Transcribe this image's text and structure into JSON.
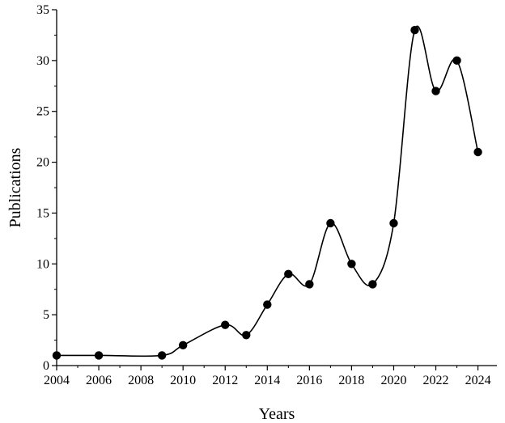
{
  "chart_data": {
    "type": "line",
    "xlabel": "Years",
    "ylabel": "Publications",
    "xlim": [
      2004,
      2024.9
    ],
    "ylim": [
      0,
      35
    ],
    "x_ticks": [
      2004,
      2006,
      2008,
      2010,
      2012,
      2014,
      2016,
      2018,
      2020,
      2022,
      2024
    ],
    "y_ticks": [
      0,
      5,
      10,
      15,
      20,
      25,
      30,
      35
    ],
    "grid": false,
    "smooth": true,
    "series": [
      {
        "x": [
          2004,
          2006,
          2009,
          2010,
          2012,
          2013,
          2014,
          2015,
          2016,
          2017,
          2018,
          2019,
          2020,
          2021,
          2022,
          2023,
          2024
        ],
        "values": [
          1,
          1,
          1,
          2,
          4,
          3,
          6,
          9,
          8,
          14,
          10,
          8,
          14,
          33,
          27,
          30,
          21
        ]
      }
    ],
    "colors": {
      "line": "#000000",
      "marker": "#000000",
      "axis": "#000000"
    }
  }
}
